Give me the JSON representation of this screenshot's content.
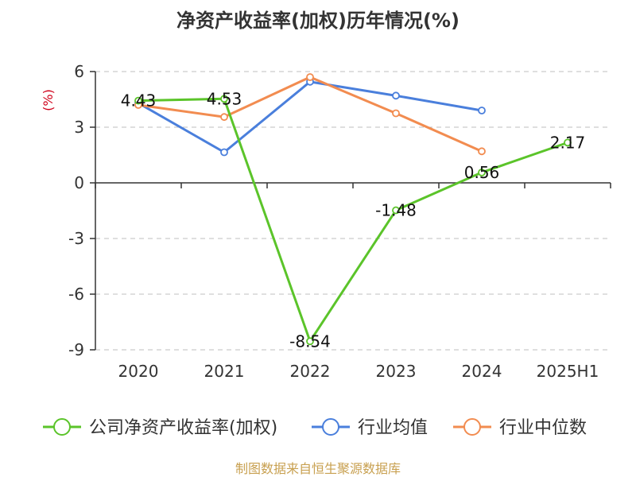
{
  "chart_data": {
    "type": "line",
    "title": "净资产收益率(加权)历年情况(%)",
    "ylabel": "(%)",
    "categories": [
      "2020",
      "2021",
      "2022",
      "2023",
      "2024",
      "2025H1"
    ],
    "yticks": [
      "6",
      "3",
      "0",
      "-3",
      "-6",
      "-9"
    ],
    "ylim": [
      -9,
      6
    ],
    "grid": true,
    "legend_position": "bottom",
    "series": [
      {
        "name": "公司净资产收益率(加权)",
        "color": "#5bc42a",
        "values": [
          4.43,
          4.53,
          -8.54,
          -1.48,
          0.56,
          2.17
        ],
        "labels": [
          "4.43",
          "4.53",
          "-8.54",
          "-1.48",
          "0.56",
          "2.17"
        ]
      },
      {
        "name": "行业均值",
        "color": "#4a7fdc",
        "values": [
          4.3,
          1.65,
          5.45,
          4.7,
          3.9,
          null
        ]
      },
      {
        "name": "行业中位数",
        "color": "#f28c50",
        "values": [
          4.2,
          3.55,
          5.7,
          3.75,
          1.7,
          null
        ]
      }
    ]
  },
  "footer": {
    "source": "制图数据来自恒生聚源数据库"
  }
}
